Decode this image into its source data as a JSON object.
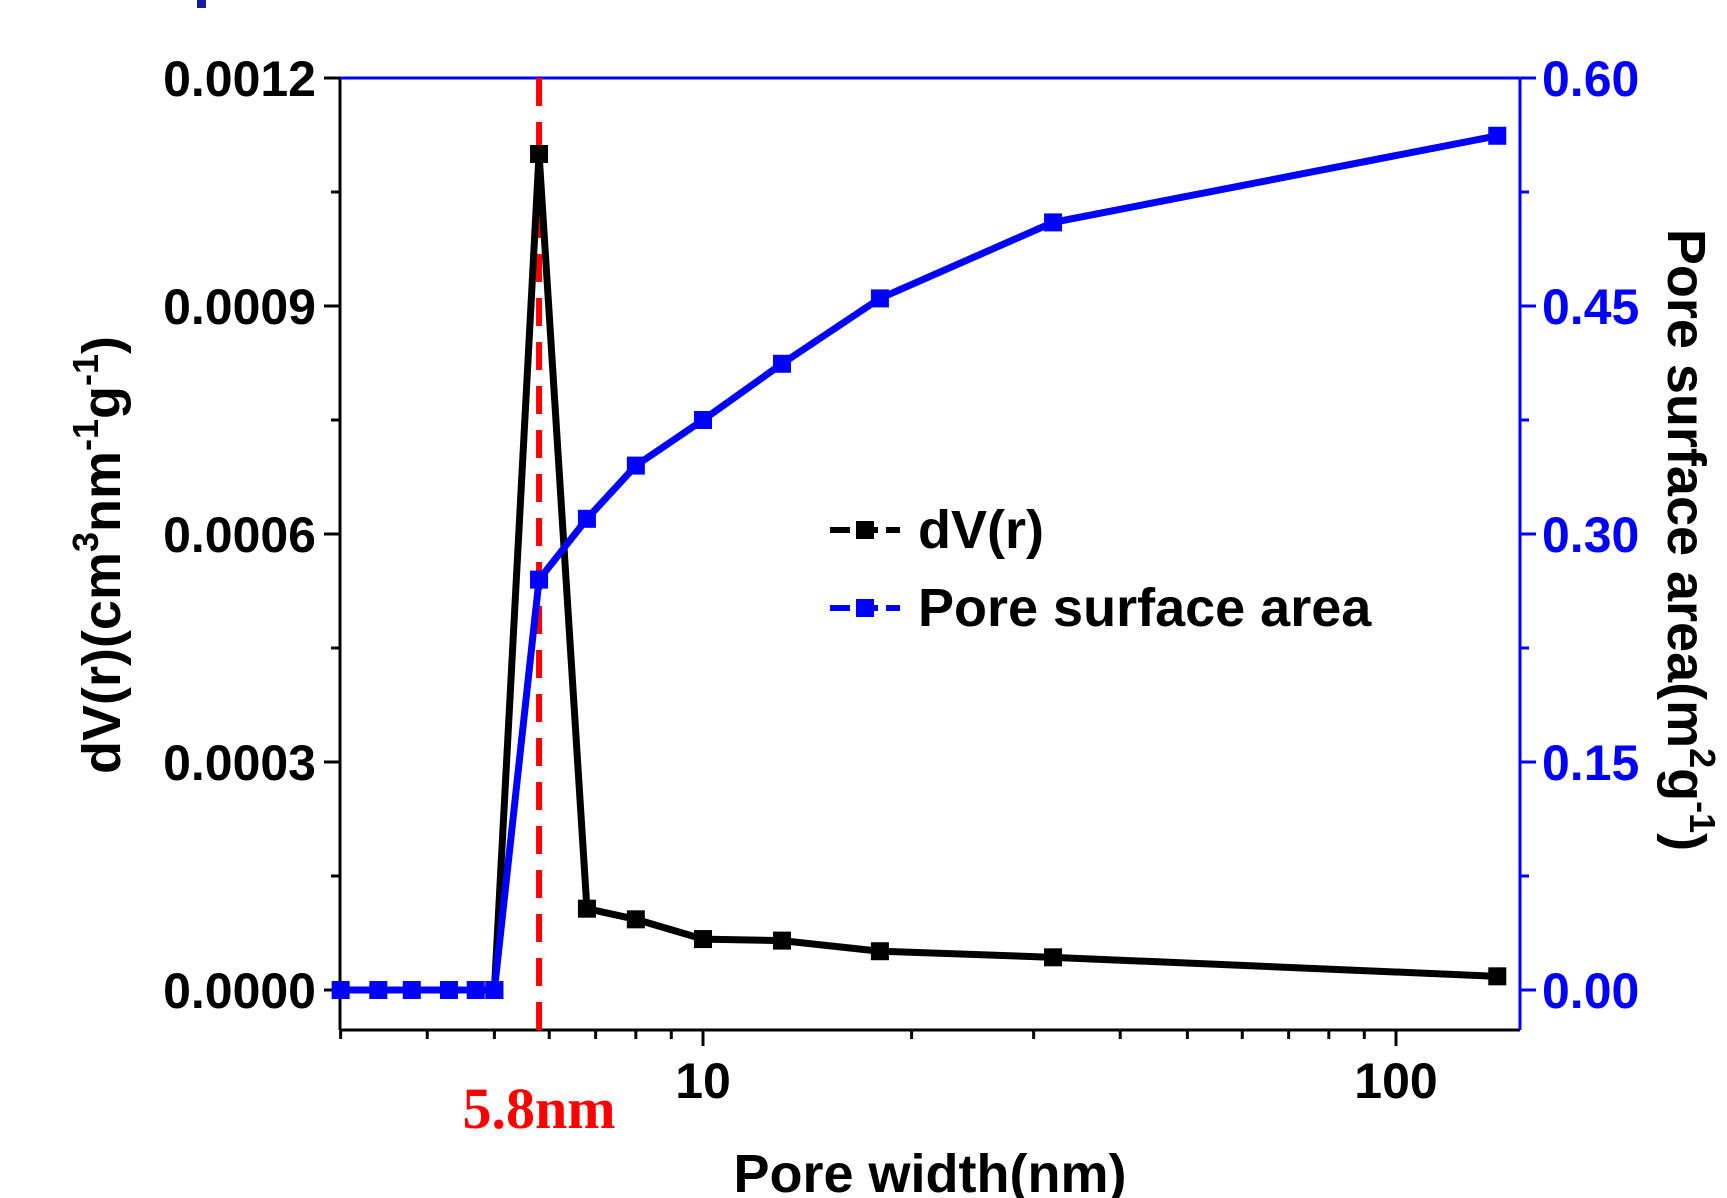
{
  "chart_data": {
    "type": "line",
    "x_scale": "log",
    "xlabel": "Pore width(nm)",
    "ylabel_left": [
      "dV(r)(cm",
      "3",
      "nm",
      "-1",
      "g",
      "-1",
      ")"
    ],
    "ylabel_right": [
      "Pore surface area(m",
      "2",
      "g",
      "-1",
      ")"
    ],
    "x_ticks": [
      {
        "value": 10,
        "label": "10"
      },
      {
        "value": 100,
        "label": "100"
      }
    ],
    "y_left_ticks": [
      "0.0000",
      "0.0003",
      "0.0006",
      "0.0009",
      "0.0012"
    ],
    "y_left_range": [
      -5e-05,
      0.0012
    ],
    "y_right_ticks": [
      "0.00",
      "0.15",
      "0.30",
      "0.45",
      "0.60"
    ],
    "y_right_range": [
      -0.025,
      0.6
    ],
    "xlim": [
      3.0,
      140
    ],
    "grid": false,
    "legend_position": "center-right",
    "series": [
      {
        "name": "dV(r)",
        "axis": "left",
        "color": "#000000",
        "x": [
          5.0,
          5.8,
          6.8,
          8.0,
          10.0,
          13.0,
          18.0,
          32.0,
          140
        ],
        "y": [
          0.0,
          0.0011,
          0.000107,
          9.3e-05,
          6.7e-05,
          6.5e-05,
          5.1e-05,
          4.3e-05,
          1.8e-05
        ]
      },
      {
        "name": "Pore surface area",
        "axis": "right",
        "color": "#0000ff",
        "x": [
          3.0,
          3.4,
          3.8,
          4.3,
          4.7,
          5.0,
          5.8,
          6.8,
          8.0,
          10.0,
          13.0,
          18.0,
          32.0,
          140
        ],
        "y": [
          0.0,
          0.0,
          0.0,
          0.0,
          0.0,
          0.0,
          0.27,
          0.31,
          0.345,
          0.375,
          0.412,
          0.455,
          0.505,
          0.562
        ]
      }
    ],
    "annotation": {
      "x": 5.8,
      "label": "5.8nm",
      "color": "#ff0000"
    }
  }
}
